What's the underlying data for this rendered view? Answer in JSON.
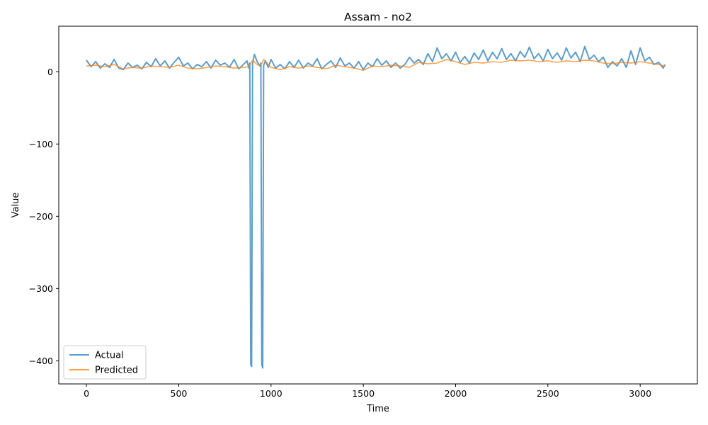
{
  "chart_data": {
    "type": "line",
    "title": "Assam - no2",
    "xlabel": "Time",
    "ylabel": "Value",
    "xlim": [
      -150,
      3310
    ],
    "ylim": [
      -432,
      63
    ],
    "xticks": [
      0,
      500,
      1000,
      1500,
      2000,
      2500,
      3000
    ],
    "yticks": [
      0,
      -100,
      -200,
      -300,
      -400
    ],
    "ytick_labels": [
      "0",
      "−100",
      "−200",
      "−300",
      "−400"
    ],
    "grid": false,
    "legend_position": "lower-left",
    "series": [
      {
        "name": "Actual",
        "color": "#1f77b4",
        "x": [
          0,
          25,
          50,
          75,
          100,
          125,
          150,
          175,
          200,
          225,
          250,
          275,
          300,
          325,
          350,
          375,
          400,
          425,
          450,
          475,
          500,
          525,
          550,
          575,
          600,
          625,
          650,
          675,
          700,
          725,
          750,
          775,
          800,
          825,
          850,
          870,
          880,
          885,
          890,
          895,
          900,
          910,
          925,
          940,
          945,
          950,
          955,
          960,
          970,
          985,
          1000,
          1025,
          1050,
          1075,
          1100,
          1125,
          1150,
          1175,
          1200,
          1225,
          1250,
          1275,
          1300,
          1325,
          1350,
          1375,
          1400,
          1425,
          1450,
          1475,
          1500,
          1525,
          1550,
          1575,
          1600,
          1625,
          1650,
          1675,
          1700,
          1725,
          1750,
          1775,
          1800,
          1825,
          1850,
          1875,
          1900,
          1925,
          1950,
          1975,
          2000,
          2025,
          2050,
          2075,
          2100,
          2125,
          2150,
          2175,
          2200,
          2225,
          2250,
          2275,
          2300,
          2325,
          2350,
          2375,
          2400,
          2425,
          2450,
          2475,
          2500,
          2525,
          2550,
          2575,
          2600,
          2625,
          2650,
          2675,
          2700,
          2725,
          2750,
          2775,
          2800,
          2825,
          2850,
          2875,
          2900,
          2925,
          2950,
          2975,
          3000,
          3025,
          3050,
          3075,
          3100,
          3125,
          3135
        ],
        "y": [
          16,
          7,
          14,
          5,
          11,
          6,
          17,
          5,
          3,
          12,
          6,
          9,
          4,
          13,
          7,
          18,
          8,
          15,
          5,
          13,
          20,
          8,
          12,
          4,
          10,
          7,
          14,
          5,
          16,
          9,
          12,
          6,
          17,
          4,
          10,
          15,
          5,
          12,
          -405,
          -408,
          10,
          24,
          14,
          8,
          12,
          -405,
          -410,
          9,
          15,
          6,
          17,
          5,
          10,
          4,
          14,
          6,
          16,
          5,
          12,
          8,
          18,
          4,
          10,
          15,
          6,
          19,
          8,
          12,
          5,
          14,
          3,
          12,
          7,
          18,
          9,
          15,
          6,
          12,
          5,
          10,
          20,
          12,
          17,
          10,
          25,
          14,
          33,
          18,
          25,
          15,
          27,
          13,
          21,
          12,
          26,
          17,
          30,
          15,
          27,
          18,
          32,
          17,
          25,
          15,
          28,
          20,
          34,
          18,
          25,
          15,
          31,
          18,
          26,
          16,
          33,
          19,
          27,
          14,
          35,
          17,
          23,
          14,
          20,
          6,
          14,
          8,
          18,
          6,
          29,
          10,
          33,
          15,
          20,
          10,
          13,
          5,
          10
        ]
      },
      {
        "name": "Predicted",
        "color": "#ff7f0e",
        "x": [
          0,
          50,
          100,
          150,
          200,
          250,
          300,
          350,
          400,
          450,
          500,
          550,
          600,
          650,
          700,
          750,
          800,
          850,
          880,
          900,
          930,
          950,
          960,
          1000,
          1050,
          1100,
          1150,
          1200,
          1250,
          1300,
          1350,
          1400,
          1450,
          1500,
          1550,
          1600,
          1650,
          1700,
          1750,
          1800,
          1850,
          1900,
          1950,
          2000,
          2050,
          2100,
          2150,
          2200,
          2250,
          2300,
          2350,
          2400,
          2450,
          2500,
          2550,
          2600,
          2650,
          2700,
          2750,
          2800,
          2850,
          2900,
          2950,
          3000,
          3050,
          3100,
          3135
        ],
        "y": [
          8,
          9,
          7,
          10,
          4,
          6,
          5,
          8,
          7,
          6,
          9,
          5,
          4,
          6,
          8,
          7,
          5,
          6,
          7,
          16,
          9,
          11,
          17,
          6,
          3,
          7,
          5,
          8,
          6,
          4,
          9,
          7,
          5,
          2,
          8,
          7,
          9,
          8,
          6,
          13,
          11,
          12,
          17,
          14,
          10,
          13,
          12,
          14,
          13,
          16,
          15,
          16,
          14,
          15,
          13,
          15,
          14,
          16,
          15,
          12,
          11,
          13,
          12,
          14,
          12,
          10,
          8
        ]
      }
    ]
  }
}
